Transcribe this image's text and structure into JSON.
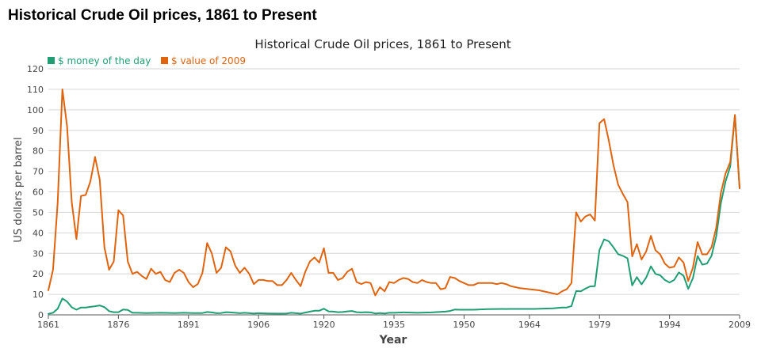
{
  "page_title": "Historical Crude Oil prices, 1861 to Present",
  "chart_data": {
    "type": "line",
    "title": "Historical Crude Oil prices, 1861 to Present",
    "xlabel": "Year",
    "ylabel": "US dollars per barrel",
    "xlim": [
      1861,
      2009
    ],
    "ylim": [
      0,
      120
    ],
    "x_ticks": [
      1861,
      1876,
      1891,
      1906,
      1920,
      1935,
      1950,
      1964,
      1979,
      1994,
      2009
    ],
    "y_ticks": [
      0,
      10,
      20,
      30,
      40,
      50,
      60,
      70,
      80,
      90,
      100,
      110,
      120
    ],
    "grid": "horizontal",
    "legend_position": "top-left",
    "series": [
      {
        "name": "$ money of the day",
        "color": "#1f9e74",
        "points": [
          [
            1861,
            0.5
          ],
          [
            1862,
            1
          ],
          [
            1863,
            3
          ],
          [
            1864,
            8
          ],
          [
            1865,
            6.5
          ],
          [
            1866,
            3.7
          ],
          [
            1867,
            2.5
          ],
          [
            1868,
            3.6
          ],
          [
            1869,
            3.6
          ],
          [
            1870,
            3.9
          ],
          [
            1871,
            4.2
          ],
          [
            1872,
            4.6
          ],
          [
            1873,
            3.8
          ],
          [
            1874,
            1.8
          ],
          [
            1875,
            1.3
          ],
          [
            1876,
            1.3
          ],
          [
            1877,
            2.6
          ],
          [
            1878,
            2.4
          ],
          [
            1879,
            1
          ],
          [
            1880,
            1
          ],
          [
            1882,
            0.9
          ],
          [
            1885,
            1
          ],
          [
            1888,
            0.9
          ],
          [
            1890,
            1
          ],
          [
            1892,
            0.9
          ],
          [
            1894,
            0.9
          ],
          [
            1895,
            1.4
          ],
          [
            1896,
            1.2
          ],
          [
            1897,
            0.8
          ],
          [
            1898,
            0.9
          ],
          [
            1899,
            1.3
          ],
          [
            1900,
            1.2
          ],
          [
            1901,
            1
          ],
          [
            1902,
            0.8
          ],
          [
            1903,
            1
          ],
          [
            1905,
            0.7
          ],
          [
            1906,
            0.8
          ],
          [
            1908,
            0.7
          ],
          [
            1910,
            0.6
          ],
          [
            1911,
            0.6
          ],
          [
            1912,
            0.7
          ],
          [
            1913,
            1
          ],
          [
            1914,
            0.8
          ],
          [
            1915,
            0.6
          ],
          [
            1916,
            1.1
          ],
          [
            1917,
            1.6
          ],
          [
            1918,
            2
          ],
          [
            1919,
            2
          ],
          [
            1920,
            3
          ],
          [
            1921,
            1.7
          ],
          [
            1922,
            1.6
          ],
          [
            1923,
            1.3
          ],
          [
            1924,
            1.4
          ],
          [
            1925,
            1.7
          ],
          [
            1926,
            1.9
          ],
          [
            1927,
            1.3
          ],
          [
            1928,
            1.2
          ],
          [
            1929,
            1.3
          ],
          [
            1930,
            1.2
          ],
          [
            1931,
            0.7
          ],
          [
            1932,
            0.9
          ],
          [
            1933,
            0.7
          ],
          [
            1934,
            1
          ],
          [
            1935,
            1
          ],
          [
            1937,
            1.2
          ],
          [
            1940,
            1
          ],
          [
            1943,
            1.2
          ],
          [
            1946,
            1.6
          ],
          [
            1947,
            1.9
          ],
          [
            1948,
            2.6
          ],
          [
            1949,
            2.5
          ],
          [
            1950,
            2.5
          ],
          [
            1952,
            2.5
          ],
          [
            1955,
            2.8
          ],
          [
            1960,
            2.9
          ],
          [
            1965,
            2.9
          ],
          [
            1969,
            3.2
          ],
          [
            1970,
            3.4
          ],
          [
            1971,
            3.6
          ],
          [
            1972,
            3.6
          ],
          [
            1973,
            4.3
          ],
          [
            1974,
            11.6
          ],
          [
            1975,
            11.5
          ],
          [
            1976,
            12.8
          ],
          [
            1977,
            13.9
          ],
          [
            1978,
            14
          ],
          [
            1979,
            31.6
          ],
          [
            1980,
            36.8
          ],
          [
            1981,
            35.9
          ],
          [
            1982,
            32.9
          ],
          [
            1983,
            29.6
          ],
          [
            1984,
            28.8
          ],
          [
            1985,
            27.6
          ],
          [
            1986,
            14.4
          ],
          [
            1987,
            18.4
          ],
          [
            1988,
            14.9
          ],
          [
            1989,
            18.2
          ],
          [
            1990,
            23.7
          ],
          [
            1991,
            20
          ],
          [
            1992,
            19.3
          ],
          [
            1993,
            17
          ],
          [
            1994,
            15.8
          ],
          [
            1995,
            17
          ],
          [
            1996,
            20.7
          ],
          [
            1997,
            19.1
          ],
          [
            1998,
            12.7
          ],
          [
            1999,
            17.9
          ],
          [
            2000,
            28.7
          ],
          [
            2001,
            24.5
          ],
          [
            2002,
            25
          ],
          [
            2003,
            28.8
          ],
          [
            2004,
            38.3
          ],
          [
            2005,
            54.5
          ],
          [
            2006,
            65.1
          ],
          [
            2007,
            72.4
          ],
          [
            2008,
            97.3
          ],
          [
            2009,
            61.7
          ]
        ]
      },
      {
        "name": "$ value of 2009",
        "color": "#e0640e",
        "points": [
          [
            1861,
            12
          ],
          [
            1862,
            22
          ],
          [
            1863,
            55
          ],
          [
            1864,
            110
          ],
          [
            1865,
            92
          ],
          [
            1866,
            55
          ],
          [
            1867,
            37
          ],
          [
            1868,
            58
          ],
          [
            1869,
            58.5
          ],
          [
            1870,
            65
          ],
          [
            1871,
            77
          ],
          [
            1872,
            66
          ],
          [
            1873,
            33
          ],
          [
            1874,
            22
          ],
          [
            1875,
            26
          ],
          [
            1876,
            51
          ],
          [
            1877,
            48.5
          ],
          [
            1878,
            26
          ],
          [
            1879,
            20
          ],
          [
            1880,
            21
          ],
          [
            1881,
            19
          ],
          [
            1882,
            17.5
          ],
          [
            1883,
            22.5
          ],
          [
            1884,
            20
          ],
          [
            1885,
            21
          ],
          [
            1886,
            17
          ],
          [
            1887,
            16
          ],
          [
            1888,
            20.5
          ],
          [
            1889,
            22
          ],
          [
            1890,
            20.5
          ],
          [
            1891,
            16
          ],
          [
            1892,
            13.5
          ],
          [
            1893,
            15
          ],
          [
            1894,
            20.5
          ],
          [
            1895,
            35
          ],
          [
            1896,
            30
          ],
          [
            1897,
            20.5
          ],
          [
            1898,
            23
          ],
          [
            1899,
            33
          ],
          [
            1900,
            31
          ],
          [
            1901,
            24
          ],
          [
            1902,
            20.5
          ],
          [
            1903,
            23
          ],
          [
            1904,
            20
          ],
          [
            1905,
            15
          ],
          [
            1906,
            17
          ],
          [
            1907,
            17
          ],
          [
            1908,
            16.5
          ],
          [
            1909,
            16.5
          ],
          [
            1910,
            14.5
          ],
          [
            1911,
            14.5
          ],
          [
            1912,
            17
          ],
          [
            1913,
            20.5
          ],
          [
            1914,
            17
          ],
          [
            1915,
            14
          ],
          [
            1916,
            21
          ],
          [
            1917,
            26
          ],
          [
            1918,
            28
          ],
          [
            1919,
            25.5
          ],
          [
            1920,
            32.5
          ],
          [
            1921,
            20.5
          ],
          [
            1922,
            20.5
          ],
          [
            1923,
            17
          ],
          [
            1924,
            18
          ],
          [
            1925,
            21
          ],
          [
            1926,
            22.5
          ],
          [
            1927,
            16
          ],
          [
            1928,
            15
          ],
          [
            1929,
            16
          ],
          [
            1930,
            15.5
          ],
          [
            1931,
            9.5
          ],
          [
            1932,
            13.5
          ],
          [
            1933,
            11.5
          ],
          [
            1934,
            16
          ],
          [
            1935,
            15.5
          ],
          [
            1936,
            17
          ],
          [
            1937,
            18
          ],
          [
            1938,
            17.5
          ],
          [
            1939,
            16
          ],
          [
            1940,
            15.5
          ],
          [
            1941,
            17
          ],
          [
            1942,
            16
          ],
          [
            1943,
            15.5
          ],
          [
            1944,
            15.5
          ],
          [
            1945,
            12.5
          ],
          [
            1946,
            13
          ],
          [
            1947,
            18.5
          ],
          [
            1948,
            18
          ],
          [
            1949,
            16.5
          ],
          [
            1950,
            15.5
          ],
          [
            1951,
            14.5
          ],
          [
            1952,
            14.5
          ],
          [
            1953,
            15.5
          ],
          [
            1954,
            15.5
          ],
          [
            1955,
            15.5
          ],
          [
            1956,
            15.5
          ],
          [
            1957,
            15
          ],
          [
            1958,
            15.5
          ],
          [
            1959,
            15
          ],
          [
            1960,
            14
          ],
          [
            1961,
            13.5
          ],
          [
            1962,
            13
          ],
          [
            1964,
            12.5
          ],
          [
            1966,
            12
          ],
          [
            1968,
            11
          ],
          [
            1970,
            10
          ],
          [
            1971,
            11.5
          ],
          [
            1972,
            12.5
          ],
          [
            1973,
            15.5
          ],
          [
            1974,
            50
          ],
          [
            1975,
            45.5
          ],
          [
            1976,
            48
          ],
          [
            1977,
            49
          ],
          [
            1978,
            46
          ],
          [
            1979,
            93.5
          ],
          [
            1980,
            95.5
          ],
          [
            1981,
            85
          ],
          [
            1982,
            73
          ],
          [
            1983,
            63.5
          ],
          [
            1984,
            59
          ],
          [
            1985,
            55
          ],
          [
            1986,
            28.5
          ],
          [
            1987,
            34.5
          ],
          [
            1988,
            27
          ],
          [
            1989,
            31
          ],
          [
            1990,
            38.5
          ],
          [
            1991,
            31.5
          ],
          [
            1992,
            29.5
          ],
          [
            1993,
            25
          ],
          [
            1994,
            23
          ],
          [
            1995,
            23.5
          ],
          [
            1996,
            28
          ],
          [
            1997,
            25.5
          ],
          [
            1998,
            16.5
          ],
          [
            1999,
            23
          ],
          [
            2000,
            35.5
          ],
          [
            2001,
            29.5
          ],
          [
            2002,
            29.5
          ],
          [
            2003,
            33
          ],
          [
            2004,
            42.5
          ],
          [
            2005,
            59.5
          ],
          [
            2006,
            69
          ],
          [
            2007,
            74.5
          ],
          [
            2008,
            97.5
          ],
          [
            2009,
            61.7
          ]
        ]
      }
    ]
  }
}
